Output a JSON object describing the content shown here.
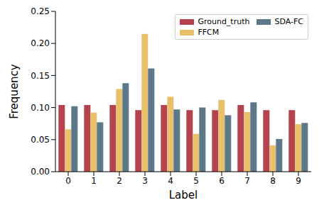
{
  "chart_data": {
    "type": "bar",
    "x_label": "Label",
    "y_label": "Frequency",
    "categories": [
      "0",
      "1",
      "2",
      "3",
      "4",
      "5",
      "6",
      "7",
      "8",
      "9"
    ],
    "series": [
      {
        "name": "Ground_truth",
        "color": "#b5434e",
        "values": [
          0.104,
          0.104,
          0.104,
          0.096,
          0.104,
          0.096,
          0.096,
          0.104,
          0.096,
          0.096
        ]
      },
      {
        "name": "FFCM",
        "color": "#e8c06c",
        "values": [
          0.066,
          0.092,
          0.129,
          0.215,
          0.117,
          0.059,
          0.112,
          0.093,
          0.041,
          0.074
        ]
      },
      {
        "name": "SDA-FC",
        "color": "#5c7889",
        "values": [
          0.102,
          0.077,
          0.138,
          0.161,
          0.097,
          0.1,
          0.088,
          0.108,
          0.051,
          0.076
        ]
      }
    ],
    "ylim": [
      0,
      0.25
    ],
    "yticks": [
      {
        "value": 0,
        "label": "0.00"
      },
      {
        "value": 0.05,
        "label": "0.05"
      },
      {
        "value": 0.1,
        "label": "0.10"
      },
      {
        "value": 0.15,
        "label": "0.15"
      },
      {
        "value": 0.2,
        "label": "0.20"
      },
      {
        "value": 0.25,
        "label": "0.25"
      }
    ],
    "legend": "upper right",
    "grid": false
  }
}
